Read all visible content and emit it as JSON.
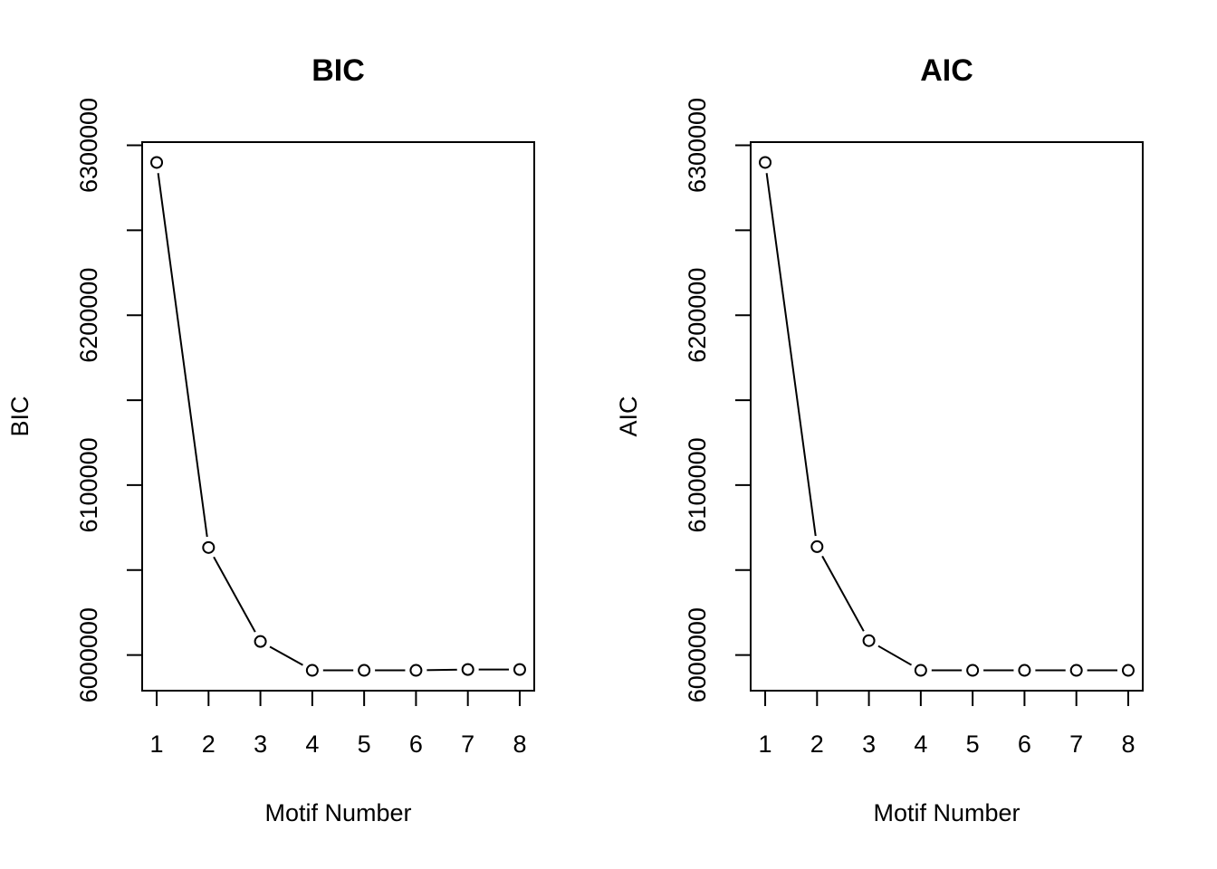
{
  "chart_data": [
    {
      "type": "line",
      "title": "BIC",
      "xlabel": "Motif Number",
      "ylabel": "BIC",
      "color": "#000000",
      "marker": "circle",
      "x": [
        1,
        2,
        3,
        4,
        5,
        6,
        7,
        8
      ],
      "values": [
        6289900,
        6063300,
        6008000,
        5991000,
        5991000,
        5991000,
        5991500,
        5991500
      ],
      "xlim": [
        0.72,
        8.28
      ],
      "ylim": [
        5979044,
        6301856
      ],
      "xticks": [
        1,
        2,
        3,
        4,
        5,
        6,
        7,
        8
      ],
      "yticks": [
        6000000,
        {
          "value": 6050000,
          "label": null
        },
        6100000,
        {
          "value": 6150000,
          "label": null
        },
        6200000,
        {
          "value": 6250000,
          "label": null
        },
        6300000
      ]
    },
    {
      "type": "line",
      "title": "AIC",
      "xlabel": "Motif Number",
      "ylabel": "AIC",
      "color": "#000000",
      "marker": "circle",
      "x": [
        1,
        2,
        3,
        4,
        5,
        6,
        7,
        8
      ],
      "values": [
        6289900,
        6063800,
        6008500,
        5991000,
        5991000,
        5991000,
        5991000,
        5991000
      ],
      "xlim": [
        0.72,
        8.28
      ],
      "ylim": [
        5979044,
        6301856
      ],
      "xticks": [
        1,
        2,
        3,
        4,
        5,
        6,
        7,
        8
      ],
      "yticks": [
        6000000,
        {
          "value": 6050000,
          "label": null
        },
        6100000,
        {
          "value": 6150000,
          "label": null
        },
        6200000,
        {
          "value": 6250000,
          "label": null
        },
        6300000
      ]
    }
  ]
}
